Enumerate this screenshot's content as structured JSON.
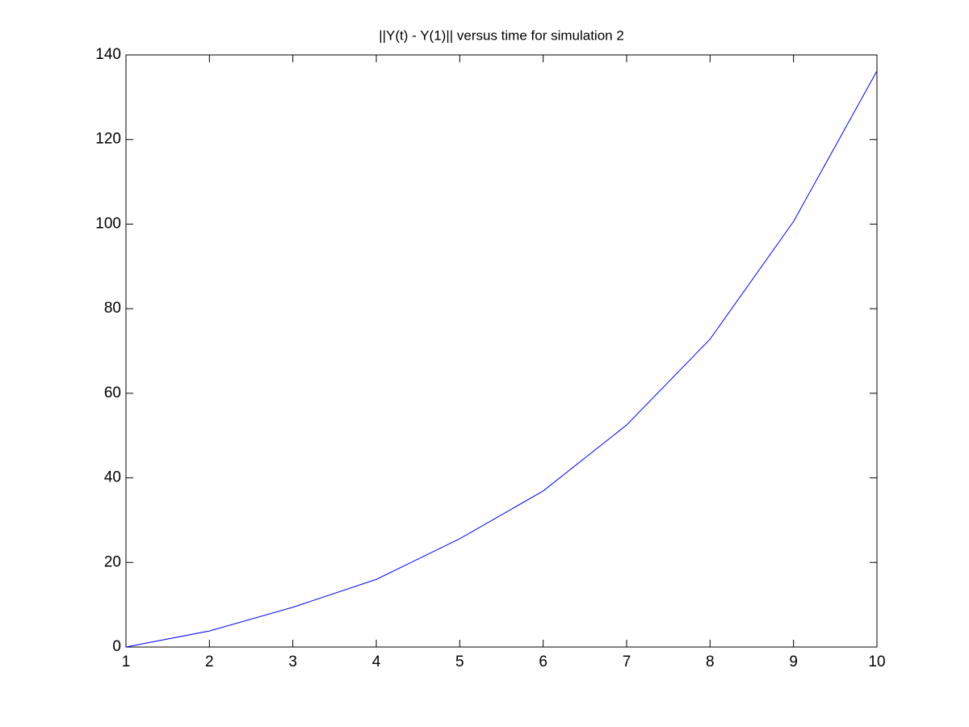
{
  "chart_data": {
    "type": "line",
    "title": "||Y(t) - Y(1)|| versus time for simulation 2",
    "x": [
      1,
      2,
      3,
      4,
      5,
      6,
      7,
      8,
      9,
      10
    ],
    "values": [
      0,
      3.8,
      9.4,
      16,
      25.6,
      36.9,
      52.5,
      72.8,
      100.6,
      136.2
    ],
    "color": "#0000ff",
    "xlim": [
      1,
      10
    ],
    "xticks": [
      1,
      2,
      3,
      4,
      5,
      6,
      7,
      8,
      9,
      10
    ],
    "ylim": [
      0,
      140
    ],
    "yticks": [
      0,
      20,
      40,
      60,
      80,
      100,
      120,
      140
    ],
    "grid": false
  }
}
